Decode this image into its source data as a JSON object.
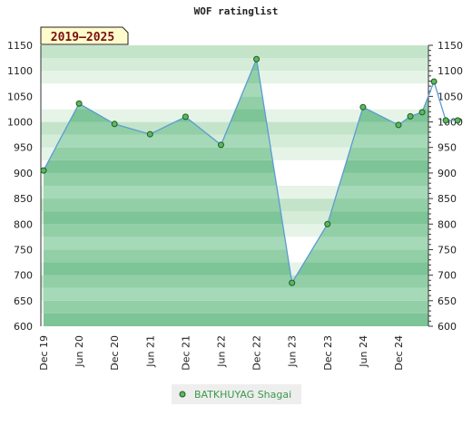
{
  "chart_data": {
    "type": "area",
    "title": "WOF ratinglist",
    "badge": "2019–2025",
    "x": [
      "2019-12",
      "2020-06",
      "2020-12",
      "2021-06",
      "2021-12",
      "2022-06",
      "2022-12",
      "2023-06",
      "2023-12",
      "2024-06",
      "2024-12",
      "2025-02",
      "2025-04",
      "2025-06",
      "2025-08",
      "2025-10"
    ],
    "y": [
      905,
      1036,
      996,
      976,
      1010,
      955,
      1123,
      685,
      800,
      1029,
      994,
      1011,
      1019,
      1079,
      1003,
      1003
    ],
    "x_tick_labels": [
      "Dec 19",
      "Jun 20",
      "Dec 20",
      "Jun 21",
      "Dec 21",
      "Jun 22",
      "Dec 22",
      "Jun 23",
      "Dec 23",
      "Jun 24",
      "Dec 24"
    ],
    "ylim": [
      600,
      1150
    ],
    "y_ticks": [
      600,
      650,
      700,
      750,
      800,
      850,
      900,
      950,
      1000,
      1050,
      1100,
      1150
    ],
    "series": [
      {
        "name": "BATKHUYAG Shagai",
        "color": "#3a9a4a"
      }
    ],
    "legend": "bottom-center",
    "grid": false
  }
}
